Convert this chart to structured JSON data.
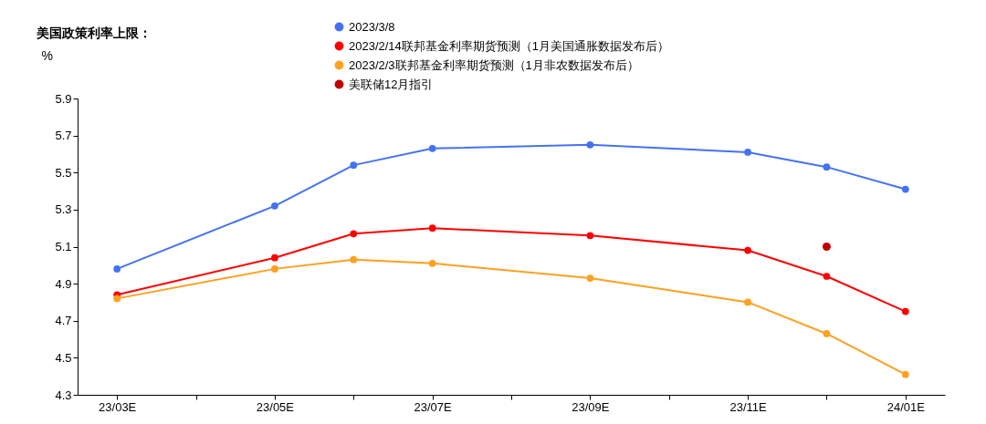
{
  "chart_data": {
    "type": "line",
    "title": "美国政策利率上限：",
    "ylabel": "%",
    "categories": [
      "23/03E",
      null,
      "23/05E",
      null,
      "23/07E",
      null,
      "23/09E",
      null,
      "23/11E",
      null,
      "24/01E"
    ],
    "series": [
      {
        "name": "2023/3/8",
        "color": "#4472f4",
        "values": [
          4.98,
          null,
          5.32,
          5.54,
          5.63,
          null,
          5.65,
          null,
          5.61,
          5.53,
          5.41
        ]
      },
      {
        "name": "2023/2/14联邦基金利率期货预测（1月美国通胀数据发布后）",
        "color": "#ff0000",
        "values": [
          4.84,
          null,
          5.04,
          5.17,
          5.2,
          null,
          5.16,
          null,
          5.08,
          4.94,
          4.75
        ]
      },
      {
        "name": "2023/2/3联邦基金利率期货预测（1月非农数据发布后）",
        "color": "#ffa020",
        "values": [
          4.82,
          null,
          4.98,
          5.03,
          5.01,
          null,
          4.93,
          null,
          4.8,
          4.63,
          4.41
        ]
      },
      {
        "name": "美联储12月指引",
        "type": "scatter",
        "color": "#c00000",
        "values": [
          null,
          null,
          null,
          null,
          null,
          null,
          null,
          null,
          null,
          5.1,
          null
        ]
      }
    ],
    "ylim": [
      4.3,
      5.9
    ],
    "yticks": [
      4.3,
      4.5,
      4.7,
      4.9,
      5.1,
      5.3,
      5.5,
      5.7,
      5.9
    ],
    "grid": false,
    "legend": "top",
    "marker": "circle"
  }
}
